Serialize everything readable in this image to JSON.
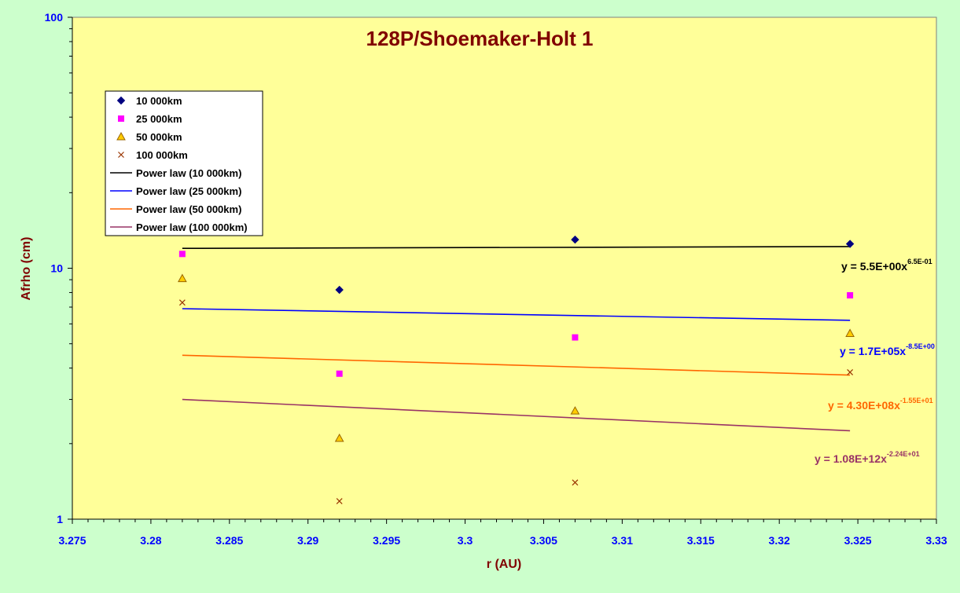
{
  "chart_data": {
    "type": "scatter",
    "title": "128P/Shoemaker-Holt 1",
    "xlabel": "r (AU)",
    "ylabel": "Afrho (cm)",
    "xlim": [
      3.275,
      3.33
    ],
    "ylim": [
      1,
      100
    ],
    "y_scale": "log",
    "x_ticks": [
      "3.275",
      "3.28",
      "3.285",
      "3.29",
      "3.295",
      "3.3",
      "3.305",
      "3.31",
      "3.315",
      "3.32",
      "3.325",
      "3.33"
    ],
    "y_ticks": [
      "1",
      "10",
      "100"
    ],
    "grid": false,
    "legend_position": "top-left",
    "colors": {
      "background": "#ccffcc",
      "plot_area": "#ffff99",
      "axis_text": "#0000ff",
      "title_text": "#800000"
    },
    "series": [
      {
        "name": "10 000km",
        "marker": "diamond",
        "color": "#000080",
        "points": [
          {
            "x": 3.292,
            "y": 8.2
          },
          {
            "x": 3.307,
            "y": 13.0
          },
          {
            "x": 3.3245,
            "y": 12.5
          }
        ]
      },
      {
        "name": "25 000km",
        "marker": "square",
        "color": "#ff00ff",
        "points": [
          {
            "x": 3.282,
            "y": 11.4
          },
          {
            "x": 3.292,
            "y": 3.8
          },
          {
            "x": 3.307,
            "y": 5.3
          },
          {
            "x": 3.3245,
            "y": 7.8
          }
        ]
      },
      {
        "name": "50 000km",
        "marker": "triangle",
        "color": "#ffcc00",
        "points": [
          {
            "x": 3.282,
            "y": 9.1
          },
          {
            "x": 3.292,
            "y": 2.1
          },
          {
            "x": 3.307,
            "y": 2.7
          },
          {
            "x": 3.3245,
            "y": 5.5
          }
        ]
      },
      {
        "name": "100 000km",
        "marker": "x",
        "color": "#993300",
        "points": [
          {
            "x": 3.282,
            "y": 7.3
          },
          {
            "x": 3.292,
            "y": 1.18
          },
          {
            "x": 3.307,
            "y": 1.4
          },
          {
            "x": 3.3245,
            "y": 3.85
          }
        ]
      }
    ],
    "trendlines": [
      {
        "name": "Power law (10 000km)",
        "color": "#000000",
        "y_start": 12.0,
        "y_end": 12.2,
        "equation": "y = 5.5E+00x",
        "exponent": "6.5E-01",
        "label_color": "#000000"
      },
      {
        "name": "Power law (25 000km)",
        "color": "#0000ff",
        "y_start": 6.9,
        "y_end": 6.2,
        "equation": "y = 1.7E+05x",
        "exponent": "-8.5E+00",
        "label_color": "#0000ff"
      },
      {
        "name": "Power law (50 000km)",
        "color": "#ff6600",
        "y_start": 4.5,
        "y_end": 3.75,
        "equation": "y = 4.30E+08x",
        "exponent": "-1.55E+01",
        "label_color": "#ff6600"
      },
      {
        "name": "Power law (100 000km)",
        "color": "#993366",
        "y_start": 3.0,
        "y_end": 2.25,
        "equation": "y = 1.08E+12x",
        "exponent": "-2.24E+01",
        "label_color": "#993366"
      }
    ],
    "trendline_x_range": [
      3.282,
      3.3245
    ]
  }
}
